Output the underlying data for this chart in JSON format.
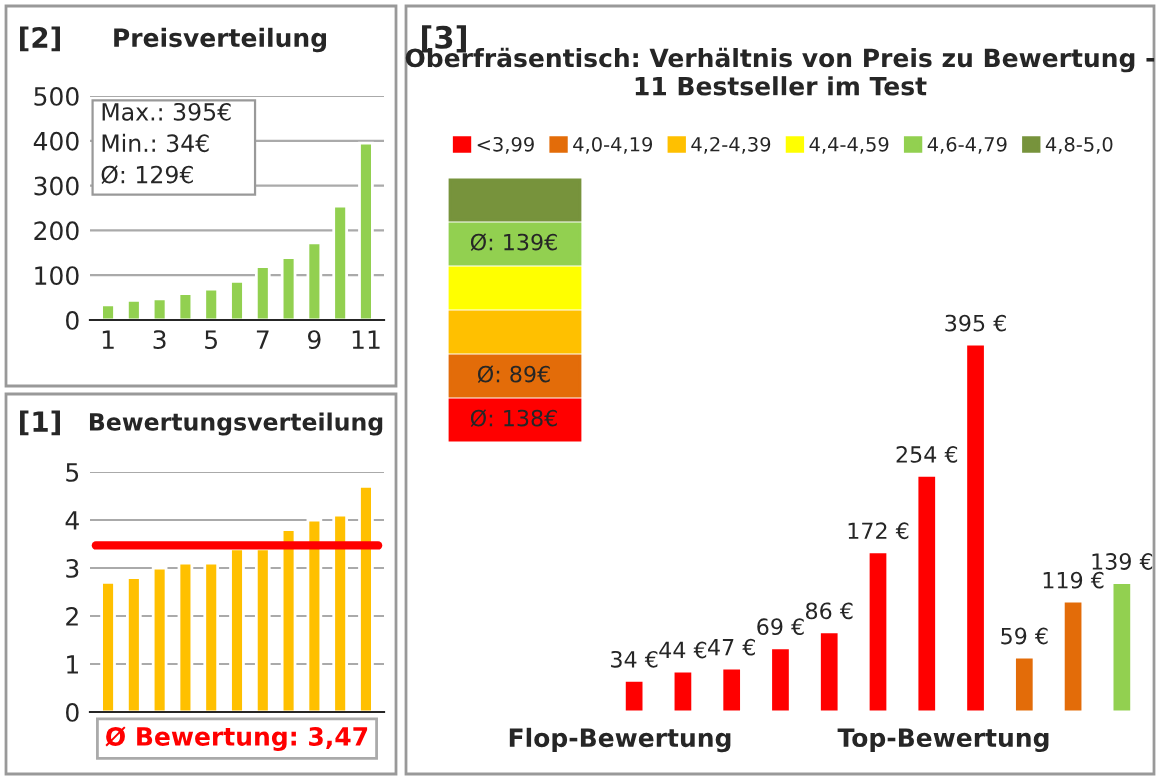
{
  "chart_data": [
    {
      "type": "bar",
      "title": "Preisverteilung",
      "annotations": [
        "[2]",
        "Max.: 395€",
        "Min.: 34€",
        "Ø: 129€"
      ],
      "categories": [
        "1",
        null,
        "3",
        null,
        "5",
        null,
        "7",
        null,
        "9",
        null,
        "11"
      ],
      "values": [
        34,
        44,
        47,
        59,
        69,
        86,
        119,
        139,
        172,
        254,
        395
      ],
      "color": "#92d050",
      "ylim": [
        0,
        500
      ],
      "yticks": [
        0,
        100,
        200,
        300,
        400,
        500
      ],
      "grid": "y"
    },
    {
      "type": "bar",
      "title": "Bewertungsverteilung",
      "annotations": [
        "[1]"
      ],
      "categories": [
        null,
        null,
        null,
        null,
        null,
        null,
        null,
        null,
        null,
        null,
        null
      ],
      "values": [
        2.7,
        2.8,
        3.0,
        3.1,
        3.1,
        3.4,
        3.4,
        3.8,
        4.0,
        4.1,
        4.7
      ],
      "color": "#ffc000",
      "ylim": [
        0,
        5
      ],
      "yticks": [
        0,
        1,
        2,
        3,
        4,
        5
      ],
      "grid": "y",
      "ref_lines": [
        {
          "axis": "y",
          "value": 3.47,
          "label": "Ø Bewertung: 3,47",
          "color": "#ff0000"
        }
      ]
    },
    {
      "type": "bar",
      "title": "Oberfräsentisch: Verhältnis von Preis zu Bewertung - 11 Bestseller im Test",
      "annotations": [
        "[3]",
        "Ø: 139€",
        "Ø: 89€",
        "Ø: 138€",
        "Flop-Bewertung",
        "Top-Bewertung"
      ],
      "categories": [
        null,
        null,
        null,
        null,
        null,
        null,
        null,
        null,
        null,
        null,
        null
      ],
      "legend": "top",
      "stacked": true,
      "series": [
        {
          "name": "<3,99",
          "color": "#ff0000",
          "values": [
            34,
            44,
            47,
            69,
            86,
            172,
            254,
            395,
            null,
            null,
            null
          ],
          "value_labels": [
            "34 €",
            "44 €",
            "47 €",
            "69 €",
            "86 €",
            "172 €",
            "254 €",
            "395 €",
            null,
            null,
            null
          ]
        },
        {
          "name": "4,0-4,19",
          "color": "#e36c09",
          "values": [
            null,
            null,
            null,
            null,
            null,
            null,
            null,
            null,
            59,
            119,
            null
          ],
          "value_labels": [
            null,
            null,
            null,
            null,
            null,
            null,
            null,
            null,
            "59 €",
            "119 €",
            null
          ]
        },
        {
          "name": "4,2-4,39",
          "color": "#ffc000",
          "values": [
            null,
            null,
            null,
            null,
            null,
            null,
            null,
            null,
            null,
            null,
            null
          ]
        },
        {
          "name": "4,4-4,59",
          "color": "#ffff00",
          "values": [
            null,
            null,
            null,
            null,
            null,
            null,
            null,
            null,
            null,
            null,
            null
          ]
        },
        {
          "name": "4,6-4,79",
          "color": "#92d050",
          "values": [
            null,
            null,
            null,
            null,
            null,
            null,
            null,
            null,
            null,
            null,
            139
          ],
          "value_labels": [
            null,
            null,
            null,
            null,
            null,
            null,
            null,
            null,
            null,
            null,
            "139 €"
          ]
        },
        {
          "name": "4,8-5,0",
          "color": "#77933c",
          "values": [
            null,
            null,
            null,
            null,
            null,
            null,
            null,
            null,
            null,
            null,
            null
          ]
        }
      ]
    }
  ]
}
